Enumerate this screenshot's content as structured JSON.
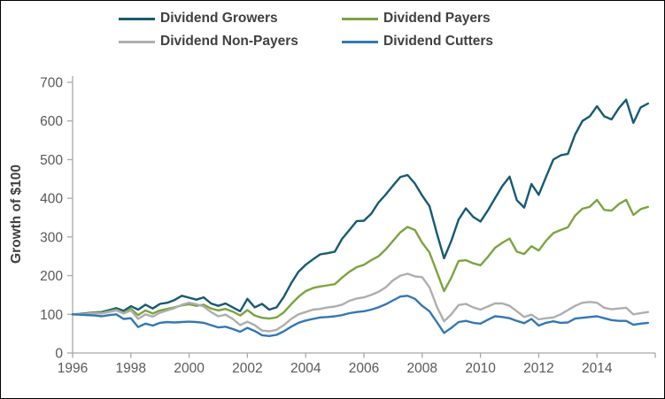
{
  "y_axis_title": "Growth of $100",
  "colors": {
    "axis": "#A8A8A8",
    "tick_text": "#595959",
    "legend_text": "#404040",
    "background": "#FFFFFF",
    "frame": "#000000"
  },
  "chart_data": {
    "type": "line",
    "title": "",
    "xlabel": "",
    "ylabel": "Growth of $100",
    "grid": false,
    "legend_position": "top",
    "xlim": [
      1996,
      2016
    ],
    "ylim": [
      0,
      700
    ],
    "x_tick_label_years": [
      1996,
      1998,
      2000,
      2002,
      2004,
      2006,
      2008,
      2010,
      2012,
      2014
    ],
    "x_tick_marks": [
      1996,
      1998,
      2000,
      2002,
      2004,
      2006,
      2008,
      2010,
      2012,
      2014,
      2016
    ],
    "y_ticks": [
      0,
      100,
      200,
      300,
      400,
      500,
      600,
      700
    ],
    "x_start": 1996,
    "x_step": 0.25,
    "series": [
      {
        "name": "Dividend Growers",
        "color": "#175A71",
        "values": [
          100,
          101,
          103,
          105,
          106,
          111,
          116,
          109,
          121,
          112,
          125,
          115,
          127,
          130,
          137,
          148,
          143,
          138,
          144,
          128,
          122,
          128,
          118,
          108,
          140,
          118,
          127,
          112,
          118,
          145,
          180,
          210,
          228,
          242,
          255,
          258,
          262,
          295,
          318,
          341,
          342,
          360,
          389,
          410,
          433,
          455,
          460,
          438,
          407,
          380,
          310,
          245,
          290,
          345,
          374,
          352,
          340,
          368,
          400,
          432,
          456,
          395,
          376,
          437,
          409,
          455,
          500,
          511,
          515,
          565,
          600,
          612,
          638,
          612,
          604,
          633,
          655,
          595,
          635,
          645
        ]
      },
      {
        "name": "Dividend Payers",
        "color": "#7BA440",
        "values": [
          100,
          100,
          102,
          104,
          104,
          108,
          112,
          104,
          114,
          98,
          110,
          102,
          110,
          114,
          118,
          123,
          126,
          122,
          125,
          115,
          110,
          114,
          107,
          97,
          111,
          97,
          91,
          89,
          92,
          105,
          126,
          145,
          160,
          168,
          172,
          175,
          178,
          195,
          210,
          222,
          228,
          240,
          250,
          268,
          290,
          312,
          326,
          318,
          285,
          260,
          210,
          160,
          195,
          238,
          240,
          232,
          227,
          248,
          272,
          285,
          296,
          262,
          256,
          276,
          265,
          290,
          310,
          318,
          325,
          355,
          373,
          378,
          396,
          370,
          368,
          385,
          396,
          357,
          372,
          378
        ]
      },
      {
        "name": "Dividend Non-Payers",
        "color": "#AEAEAE",
        "values": [
          100,
          100,
          101,
          103,
          102,
          106,
          110,
          102,
          110,
          88,
          100,
          94,
          104,
          110,
          116,
          125,
          130,
          126,
          120,
          106,
          95,
          99,
          88,
          72,
          81,
          72,
          58,
          56,
          60,
          72,
          88,
          100,
          106,
          112,
          114,
          118,
          120,
          125,
          135,
          141,
          144,
          150,
          158,
          170,
          188,
          200,
          205,
          198,
          196,
          170,
          120,
          82,
          100,
          124,
          127,
          118,
          112,
          120,
          128,
          128,
          122,
          108,
          93,
          99,
          87,
          90,
          92,
          100,
          111,
          122,
          130,
          132,
          130,
          117,
          113,
          115,
          117,
          100,
          103,
          106
        ]
      },
      {
        "name": "Dividend Cutters",
        "color": "#3377B5",
        "values": [
          100,
          99,
          98,
          97,
          95,
          98,
          100,
          88,
          90,
          67,
          76,
          71,
          78,
          80,
          79,
          80,
          81,
          80,
          78,
          72,
          66,
          68,
          62,
          55,
          65,
          57,
          46,
          44,
          47,
          56,
          68,
          78,
          84,
          88,
          92,
          93,
          95,
          98,
          103,
          106,
          108,
          112,
          118,
          126,
          136,
          146,
          148,
          140,
          122,
          108,
          80,
          52,
          65,
          80,
          83,
          78,
          76,
          86,
          95,
          93,
          90,
          83,
          77,
          88,
          71,
          78,
          82,
          78,
          79,
          89,
          91,
          93,
          95,
          90,
          85,
          83,
          83,
          73,
          76,
          78
        ]
      }
    ]
  }
}
